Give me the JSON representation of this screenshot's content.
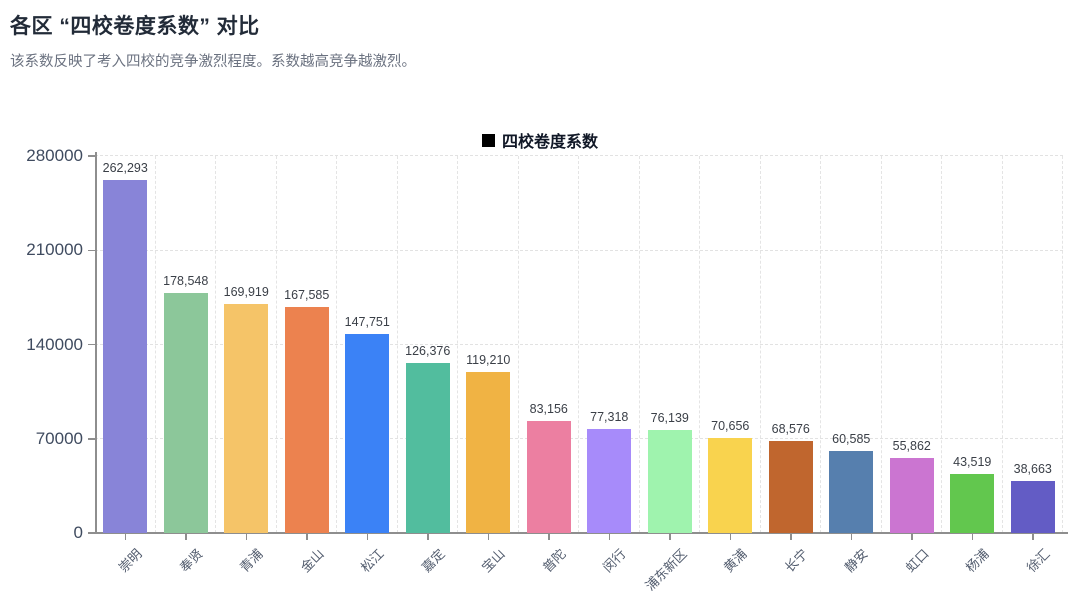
{
  "header": {
    "title": "各区 “四校卷度系数” 对比",
    "subtitle": "该系数反映了考入四校的竞争激烈程度。系数越高竞争越激烈。"
  },
  "legend": {
    "marker": "black-square",
    "label": "四校卷度系数"
  },
  "chart_data": {
    "type": "bar",
    "title": "各区 “四校卷度系数” 对比",
    "series_name": "四校卷度系数",
    "categories": [
      "崇明",
      "奉贤",
      "青浦",
      "金山",
      "松江",
      "嘉定",
      "宝山",
      "普陀",
      "闵行",
      "浦东新区",
      "黄浦",
      "长宁",
      "静安",
      "虹口",
      "杨浦",
      "徐汇"
    ],
    "values": [
      262293,
      178548,
      169919,
      167585,
      147751,
      126376,
      119210,
      83156,
      77318,
      76139,
      70656,
      68576,
      60585,
      55862,
      43519,
      38663
    ],
    "value_labels": [
      "262,293",
      "178,548",
      "169,919",
      "167,585",
      "147,751",
      "126,376",
      "119,210",
      "83,156",
      "77,318",
      "76,139",
      "70,656",
      "68,576",
      "60,585",
      "55,862",
      "43,519",
      "38,663"
    ],
    "colors": [
      "#8884d8",
      "#8cc79a",
      "#f5c468",
      "#ec824f",
      "#3b82f6",
      "#52bd9e",
      "#f0b344",
      "#ec7fa1",
      "#a78bfa",
      "#9ff3ae",
      "#f9d34e",
      "#c0662e",
      "#567fae",
      "#cb75d1",
      "#62c74e",
      "#635cc5"
    ],
    "yticks": [
      0,
      70000,
      140000,
      210000,
      280000
    ],
    "ylim": [
      0,
      280000
    ],
    "xlabel": "",
    "ylabel": "",
    "grid": "dashed horizontal and vertical",
    "legend_position": "top-center",
    "x_label_rotation": -45
  }
}
